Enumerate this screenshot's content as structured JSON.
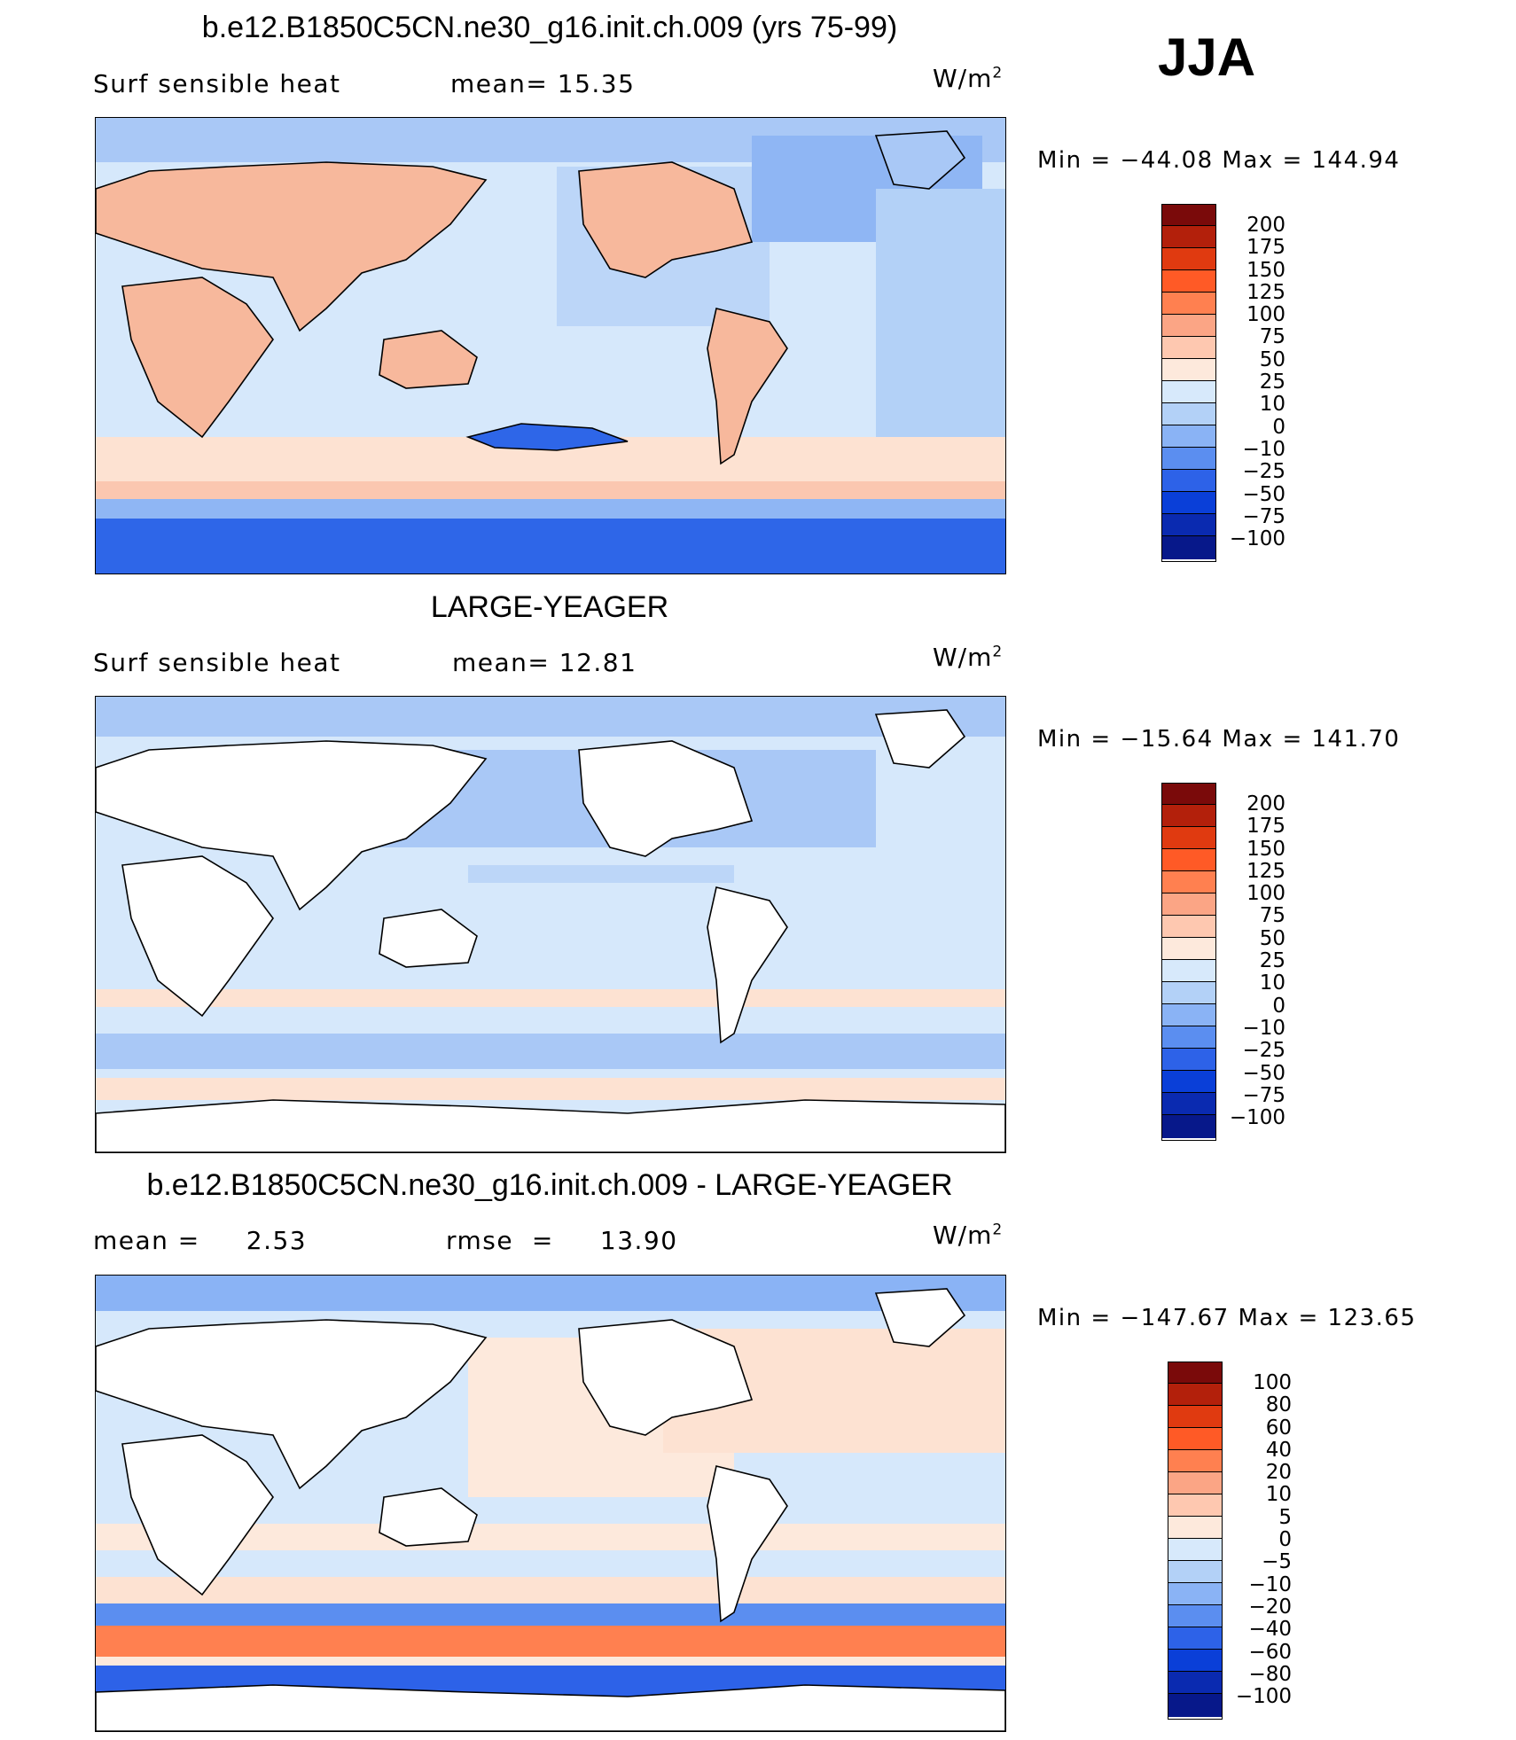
{
  "season": "JJA",
  "panels": [
    {
      "title": "b.e12.B1850C5CN.ne30_g16.init.ch.009 (yrs 75-99)",
      "left_text": "Surf  sensible  heat",
      "center_text": "mean=  15.35",
      "units": "W/m",
      "units_sup": "2",
      "minmax": "Min  =  −44.08  Max  =  144.94",
      "colorbar_labels": [
        "200",
        "175",
        "150",
        "125",
        "100",
        "75",
        "50",
        "25",
        "10",
        "0",
        "−10",
        "−25",
        "−50",
        "−75",
        "−100"
      ]
    },
    {
      "title": "LARGE-YEAGER",
      "left_text": "Surf  sensible  heat",
      "center_text": "mean=  12.81",
      "units": "W/m",
      "units_sup": "2",
      "minmax": "Min  =  −15.64  Max  =  141.70",
      "colorbar_labels": [
        "200",
        "175",
        "150",
        "125",
        "100",
        "75",
        "50",
        "25",
        "10",
        "0",
        "−10",
        "−25",
        "−50",
        "−75",
        "−100"
      ]
    },
    {
      "title": "b.e12.B1850C5CN.ne30_g16.init.ch.009 - LARGE-YEAGER",
      "left_text": "mean =     2.53",
      "center_text": "rmse  =     13.90",
      "units": "W/m",
      "units_sup": "2",
      "minmax": "Min  =  −147.67  Max  =  123.65",
      "colorbar_labels": [
        "100",
        "80",
        "60",
        "40",
        "20",
        "10",
        "5",
        "0",
        "−5",
        "−10",
        "−20",
        "−40",
        "−60",
        "−80",
        "−100"
      ]
    }
  ],
  "colors": {
    "colorbar_top_to_bottom": [
      "#7a0a0a",
      "#b3200b",
      "#e03a10",
      "#ff5a26",
      "#ff8050",
      "#fba585",
      "#fec8b0",
      "#fde9dc",
      "#d7e9fb",
      "#b3d1f7",
      "#8ab3f5",
      "#5b8ef0",
      "#2d62e8",
      "#0a3fd8",
      "#0a2ab0",
      "#07188a"
    ],
    "land_model": "#f7b89c",
    "land_obs": "#ffffff",
    "ocean_light": "#d6e8fb",
    "ocean_mid": "#a9c8f6",
    "ocean_deep": "#2e66e8"
  }
}
